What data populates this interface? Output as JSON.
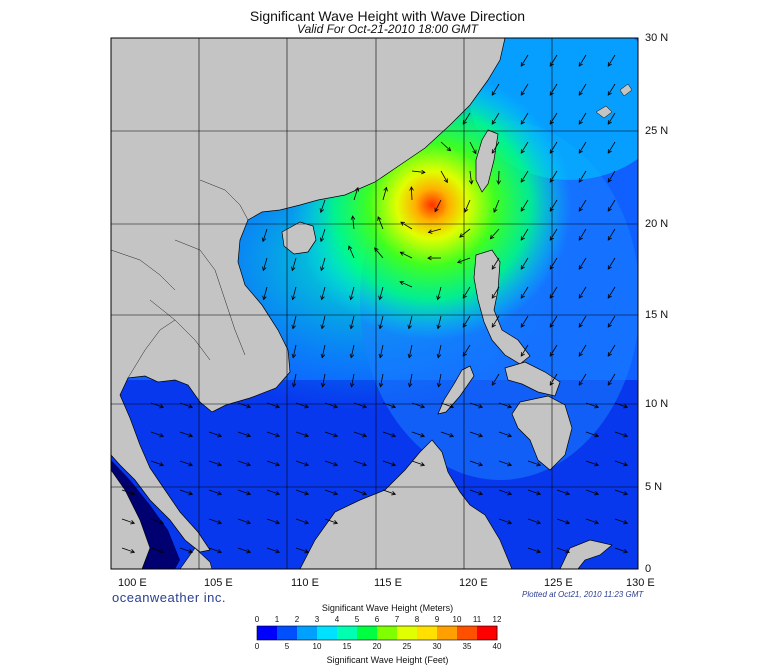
{
  "header": {
    "title": "Significant Wave Height with Wave Direction",
    "subtitle": "Valid For Oct-21-2010 18:00 GMT"
  },
  "map": {
    "region": "South China Sea",
    "lon_range": [
      100,
      130
    ],
    "lat_range": [
      0,
      30
    ],
    "lat_labels": [
      "30 N",
      "25 N",
      "20 N",
      "15 N",
      "10 N",
      "5 N",
      "0"
    ],
    "lon_labels": [
      "100 E",
      "105 E",
      "110 E",
      "115 E",
      "120 E",
      "125 E",
      "130 E"
    ],
    "storm_center": {
      "lon": 117.5,
      "lat": 21.0,
      "max_height_m": 11
    },
    "colors": {
      "land": "#c4c4c4",
      "coast": "#000000",
      "arrow": "#000000"
    }
  },
  "footer": {
    "brand": "oceanweather inc.",
    "plotted": "Plotted at Oct21, 2010 11:23 GMT"
  },
  "colorbar": {
    "title_meters": "Significant Wave Height (Meters)",
    "title_feet": "Significant Wave Height (Feet)",
    "meters_ticks": [
      "0",
      "1",
      "2",
      "3",
      "4",
      "5",
      "6",
      "7",
      "8",
      "9",
      "10",
      "11",
      "12"
    ],
    "feet_ticks": [
      "0",
      "5",
      "10",
      "15",
      "20",
      "25",
      "30",
      "35",
      "40"
    ],
    "colors": [
      "#0000ff",
      "#0050ff",
      "#00a0ff",
      "#00e0ff",
      "#00ffb0",
      "#00ff40",
      "#80ff00",
      "#e0ff00",
      "#ffe000",
      "#ffa000",
      "#ff5000",
      "#ff0000"
    ]
  }
}
